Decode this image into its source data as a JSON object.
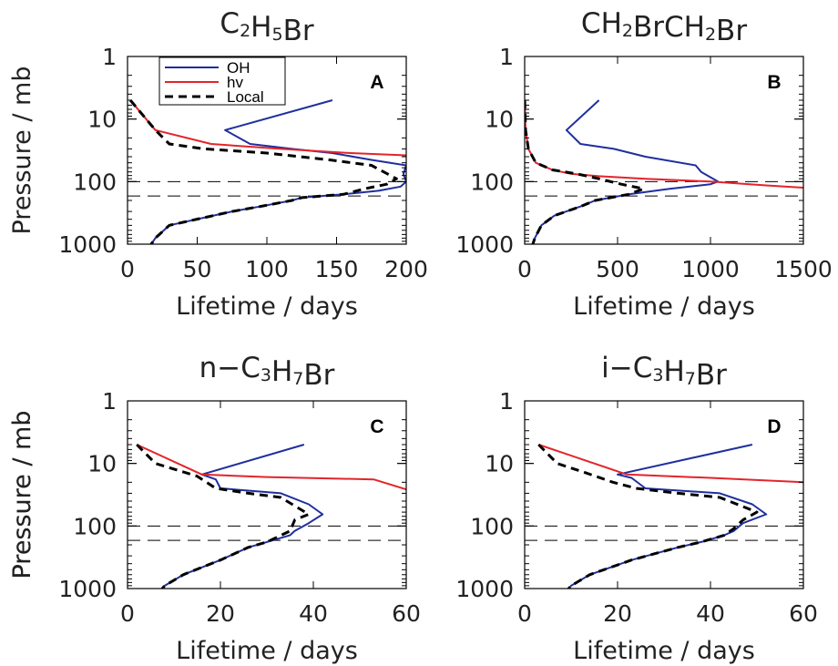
{
  "chart_data": [
    {
      "type": "line",
      "title": "C₂H₅Br",
      "title_parts": [
        {
          "t": "C"
        },
        {
          "t": "2",
          "sub": true
        },
        {
          "t": "H"
        },
        {
          "t": "5",
          "sub": true
        },
        {
          "t": "Br"
        }
      ],
      "panel_label": "A",
      "xlabel": "Lifetime / days",
      "ylabel": "Pressure / mb",
      "xlim": [
        0,
        200
      ],
      "ylim": [
        1000,
        1
      ],
      "yscale": "log",
      "xticks": [
        0,
        50,
        100,
        150,
        200
      ],
      "yticks": [
        1,
        10,
        100,
        1000
      ],
      "ylabel_shown": true,
      "reference_lines": [
        100,
        170
      ],
      "legend": {
        "placement": "top-left",
        "entries": [
          "OH",
          "hv",
          "Local"
        ]
      },
      "series": [
        {
          "name": "OH",
          "color": "#1f2f9e",
          "dash": "solid",
          "x": [
            147,
            70,
            88,
            118,
            147,
            175,
            200,
            198,
            200,
            196,
            180,
            155,
            125,
            118,
            95,
            75,
            30,
            20,
            17,
            13
          ],
          "y": [
            5,
            15,
            25,
            30,
            35,
            45,
            55,
            75,
            100,
            120,
            140,
            160,
            180,
            200,
            250,
            300,
            500,
            800,
            1000,
            1300
          ]
        },
        {
          "name": "hv",
          "color": "#e3242b",
          "dash": "solid",
          "x": [
            2,
            20,
            60,
            110,
            160,
            200
          ],
          "y": [
            5,
            15,
            25,
            30,
            35,
            38
          ]
        },
        {
          "name": "Local",
          "color": "#000000",
          "dash": "dash",
          "x": [
            2,
            20,
            30,
            55,
            100,
            145,
            175,
            193,
            186,
            170,
            155,
            125,
            118,
            95,
            75,
            30,
            20,
            17,
            13
          ],
          "y": [
            5,
            15,
            25,
            30,
            35,
            45,
            55,
            90,
            110,
            130,
            160,
            180,
            200,
            250,
            300,
            500,
            800,
            1000,
            1300
          ]
        }
      ]
    },
    {
      "type": "line",
      "title": "CH₂BrCH₂Br",
      "title_parts": [
        {
          "t": "CH"
        },
        {
          "t": "2",
          "sub": true
        },
        {
          "t": "BrCH"
        },
        {
          "t": "2",
          "sub": true
        },
        {
          "t": "Br"
        }
      ],
      "panel_label": "B",
      "xlabel": "Lifetime / days",
      "ylabel": "",
      "xlim": [
        0,
        1500
      ],
      "ylim": [
        1000,
        1
      ],
      "yscale": "log",
      "xticks": [
        0,
        500,
        1000,
        1500
      ],
      "yticks": [
        1,
        10,
        100,
        1000
      ],
      "ylabel_shown": false,
      "reference_lines": [
        100,
        170
      ],
      "series": [
        {
          "name": "OH",
          "color": "#1f2f9e",
          "dash": "solid",
          "x": [
            400,
            225,
            300,
            480,
            650,
            920,
            950,
            1040,
            1000,
            780,
            560,
            380,
            300,
            160,
            90,
            55,
            35,
            30
          ],
          "y": [
            5,
            15,
            25,
            30,
            40,
            55,
            70,
            100,
            110,
            130,
            160,
            200,
            250,
            350,
            500,
            800,
            1200,
            1300
          ]
        },
        {
          "name": "hv",
          "color": "#e3242b",
          "dash": "solid",
          "x": [
            0,
            5,
            20,
            60,
            150,
            250,
            400,
            650,
            1000,
            1300,
            1500
          ],
          "y": [
            5,
            15,
            30,
            50,
            65,
            75,
            82,
            90,
            100,
            115,
            125
          ]
        },
        {
          "name": "Local",
          "color": "#000000",
          "dash": "dash",
          "x": [
            0,
            5,
            20,
            60,
            150,
            280,
            400,
            520,
            640,
            560,
            380,
            300,
            160,
            90,
            55,
            35,
            30
          ],
          "y": [
            5,
            15,
            30,
            50,
            65,
            75,
            90,
            110,
            130,
            160,
            200,
            250,
            350,
            500,
            800,
            1200,
            1300
          ]
        }
      ]
    },
    {
      "type": "line",
      "title": "n−C₃H₇Br",
      "title_parts": [
        {
          "t": "n−C"
        },
        {
          "t": "3",
          "sub": true
        },
        {
          "t": "H"
        },
        {
          "t": "7",
          "sub": true
        },
        {
          "t": "Br"
        }
      ],
      "panel_label": "C",
      "xlabel": "Lifetime / days",
      "ylabel": "Pressure / mb",
      "xlim": [
        0,
        60
      ],
      "ylim": [
        1000,
        1
      ],
      "yscale": "log",
      "xticks": [
        0,
        20,
        40,
        60
      ],
      "yticks": [
        1,
        10,
        100,
        1000
      ],
      "ylabel_shown": true,
      "reference_lines": [
        100,
        170
      ],
      "series": [
        {
          "name": "OH",
          "color": "#1f2f9e",
          "dash": "solid",
          "x": [
            38,
            16,
            19,
            20,
            33,
            39,
            42,
            39,
            36,
            35,
            30,
            26,
            20,
            12,
            8,
            7,
            6
          ],
          "y": [
            5,
            15,
            18,
            25,
            30,
            45,
            65,
            90,
            120,
            140,
            180,
            220,
            350,
            600,
            900,
            1100,
            1300
          ]
        },
        {
          "name": "hv",
          "color": "#e3242b",
          "dash": "solid",
          "x": [
            2,
            16,
            30,
            53,
            60
          ],
          "y": [
            5,
            15,
            16.5,
            18,
            26
          ]
        },
        {
          "name": "Local",
          "color": "#000000",
          "dash": "dash",
          "x": [
            2,
            6,
            11,
            15,
            19,
            26,
            33,
            39,
            36,
            35,
            30,
            26,
            20,
            12,
            8,
            7,
            6
          ],
          "y": [
            5,
            10,
            13,
            16,
            25,
            30,
            35,
            65,
            80,
            120,
            180,
            220,
            350,
            600,
            900,
            1100,
            1300
          ]
        }
      ]
    },
    {
      "type": "line",
      "title": "i−C₃H₇Br",
      "title_parts": [
        {
          "t": "i−C"
        },
        {
          "t": "3",
          "sub": true
        },
        {
          "t": "H"
        },
        {
          "t": "7",
          "sub": true
        },
        {
          "t": "Br"
        }
      ],
      "panel_label": "D",
      "xlabel": "Lifetime / days",
      "ylabel": "Pressure / mb",
      "xlim": [
        0,
        60
      ],
      "ylim": [
        1000,
        1
      ],
      "yscale": "log",
      "xticks": [
        0,
        20,
        40,
        60
      ],
      "yticks": [
        1,
        10,
        100,
        1000
      ],
      "ylabel_shown": true,
      "reference_lines": [
        100,
        170
      ],
      "series": [
        {
          "name": "OH",
          "color": "#1f2f9e",
          "dash": "solid",
          "x": [
            49,
            20,
            23,
            26,
            42,
            49,
            52,
            47,
            45,
            43,
            38,
            33,
            23,
            14,
            10,
            9,
            8
          ],
          "y": [
            5,
            15,
            17,
            25,
            30,
            45,
            65,
            90,
            120,
            140,
            180,
            220,
            350,
            600,
            900,
            1100,
            1300
          ]
        },
        {
          "name": "hv",
          "color": "#e3242b",
          "dash": "solid",
          "x": [
            3,
            22,
            40,
            60
          ],
          "y": [
            5,
            15,
            17,
            20
          ]
        },
        {
          "name": "Local",
          "color": "#000000",
          "dash": "dash",
          "x": [
            3,
            7,
            13,
            19,
            24,
            33,
            42,
            50,
            47,
            45,
            43,
            38,
            33,
            23,
            14,
            10,
            9,
            8
          ],
          "y": [
            5,
            10,
            14,
            20,
            25,
            30,
            35,
            60,
            80,
            110,
            140,
            180,
            220,
            350,
            600,
            900,
            1100,
            1300
          ]
        }
      ]
    }
  ]
}
